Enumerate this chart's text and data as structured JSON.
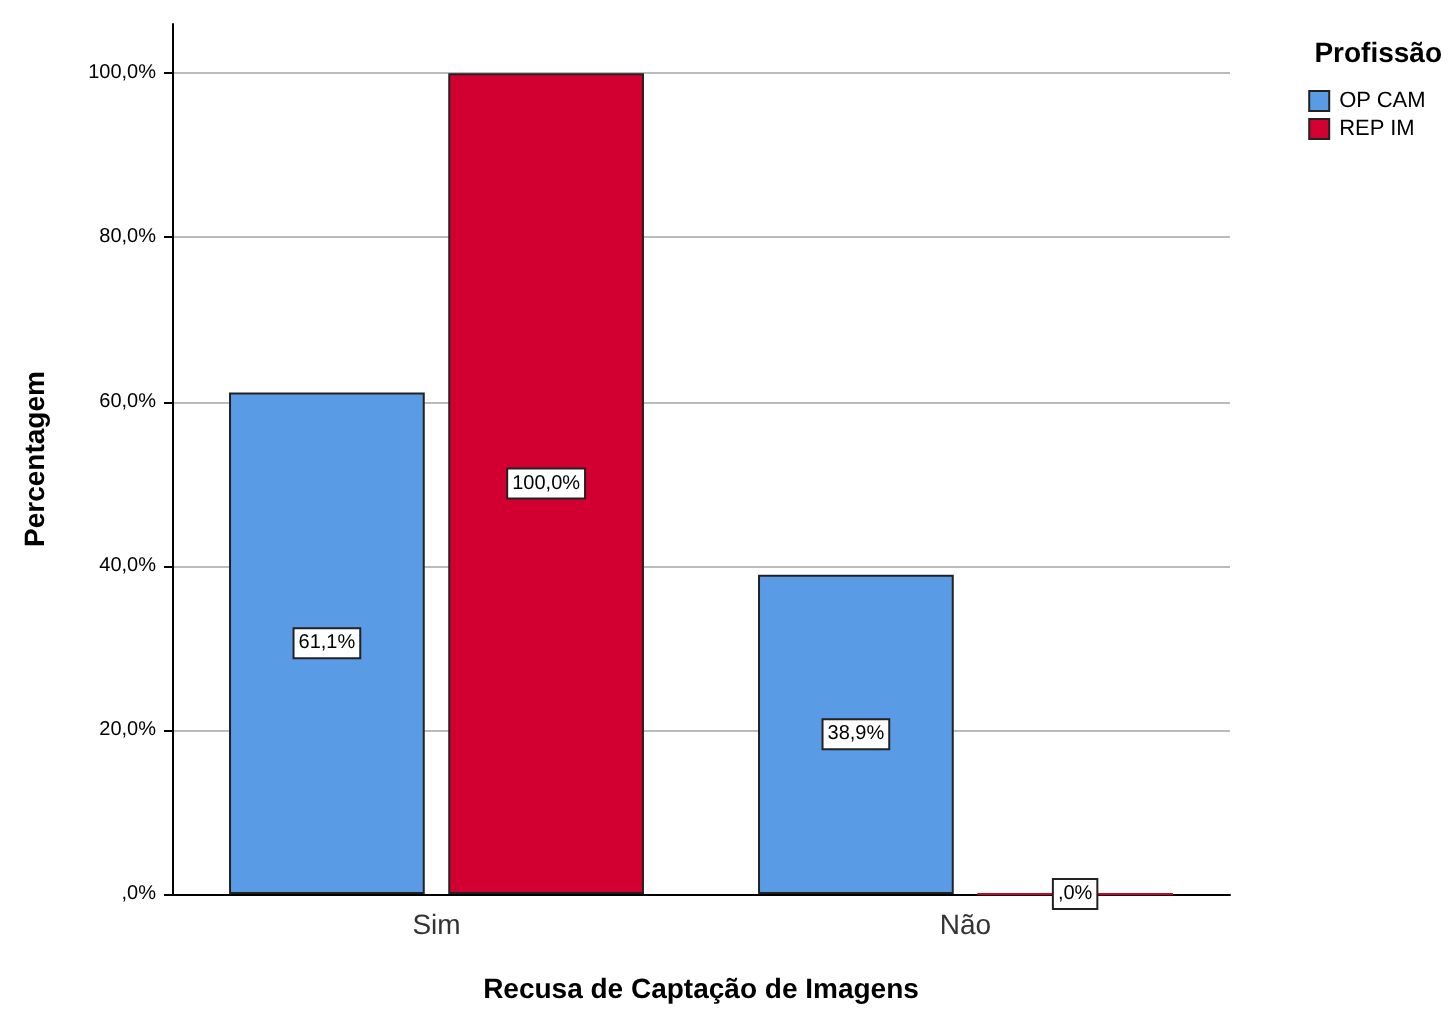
{
  "chart_data": {
    "type": "bar",
    "xlabel": "Recusa de Captação de Imagens",
    "ylabel": "Percentagem",
    "legend_title": "Profissão",
    "categories": [
      "Sim",
      "Não"
    ],
    "series": [
      {
        "name": "OP CAM",
        "color": "#5a9be6",
        "values": [
          61.1,
          38.9
        ],
        "value_labels": [
          "61,1%",
          "38,9%"
        ]
      },
      {
        "name": "REP IM",
        "color": "#d20030",
        "values": [
          100,
          0
        ],
        "value_labels": [
          "100,0%",
          ",0%"
        ]
      }
    ],
    "ylim": [
      0,
      106
    ],
    "yticks": [
      {
        "value": 0,
        "label": ",0%"
      },
      {
        "value": 20,
        "label": "20,0%"
      },
      {
        "value": 40,
        "label": "40,0%"
      },
      {
        "value": 60,
        "label": "60,0%"
      },
      {
        "value": 80,
        "label": "80,0%"
      },
      {
        "value": 100,
        "label": "100,0%"
      }
    ],
    "grid": "y",
    "legend": "top right"
  }
}
